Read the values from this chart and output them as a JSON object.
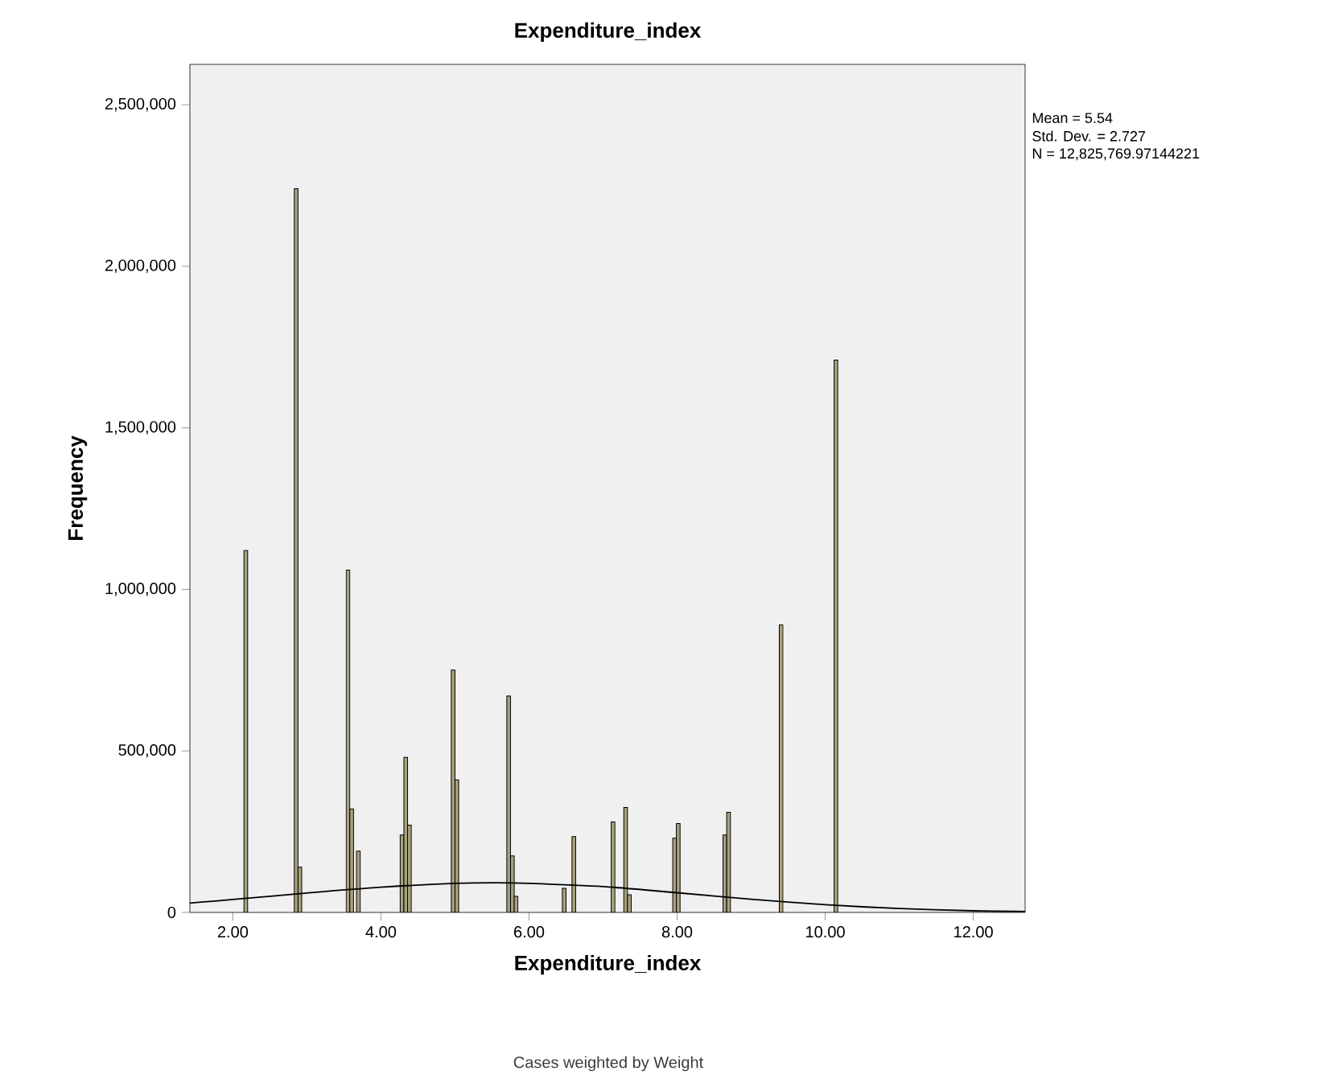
{
  "chart_data": {
    "type": "histogram",
    "title": "Expenditure_index",
    "xlabel": "Expenditure_index",
    "ylabel": "Frequency",
    "bins": [
      2.15,
      2.2,
      2.83,
      2.88,
      2.93,
      3.53,
      3.58,
      3.63,
      3.67,
      3.72,
      4.26,
      4.31,
      4.36,
      4.41,
      4.95,
      5.0,
      5.05,
      5.7,
      5.75,
      5.8,
      5.85,
      6.45,
      6.5,
      6.58,
      6.63,
      7.11,
      7.16,
      7.28,
      7.33,
      7.38,
      7.94,
      7.99,
      8.04,
      8.62,
      8.67,
      8.72,
      9.38,
      9.43,
      10.12,
      10.17
    ],
    "values": [
      1120000,
      0,
      2240000,
      140000,
      0,
      1060000,
      320000,
      0,
      190000,
      0,
      240000,
      480000,
      270000,
      0,
      750000,
      410000,
      0,
      670000,
      175000,
      50000,
      0,
      75000,
      0,
      235000,
      0,
      280000,
      0,
      325000,
      55000,
      0,
      230000,
      275000,
      0,
      240000,
      310000,
      0,
      890000,
      0,
      1710000
    ],
    "color": "#a8a27e",
    "series": [
      {
        "type": "line",
        "color": "#000000",
        "x": [
          1.42,
          2,
          3,
          4,
          5,
          5.54,
          6,
          7,
          8,
          9,
          10,
          11,
          12,
          12.7
        ],
        "values": [
          29000,
          40000,
          60000,
          78000,
          90000,
          92000,
          90000,
          80000,
          61000,
          41000,
          24000,
          12000,
          5000,
          3000
        ]
      }
    ],
    "xlim": [
      1.42,
      12.7
    ],
    "ylim": [
      0,
      2625000
    ],
    "xticks": [
      {
        "value": 2,
        "label": "2.00"
      },
      {
        "value": 4,
        "label": "4.00"
      },
      {
        "value": 6,
        "label": "6.00"
      },
      {
        "value": 8,
        "label": "8.00"
      },
      {
        "value": 10,
        "label": "10.00"
      },
      {
        "value": 12,
        "label": "12.00"
      }
    ],
    "yticks": [
      0,
      {
        "value": 500000,
        "label": "500,000"
      },
      {
        "value": 1000000,
        "label": "1,000,000"
      },
      {
        "value": 1500000,
        "label": "1,500,000"
      },
      {
        "value": 2000000,
        "label": "2,000,000"
      },
      {
        "value": 2500000,
        "label": "2,500,000"
      }
    ],
    "annotations": [
      "Mean = 5.54",
      "Std. Dev. = 2.727",
      "N = 12,825,769.97144221",
      "Cases weighted by Weight"
    ]
  }
}
